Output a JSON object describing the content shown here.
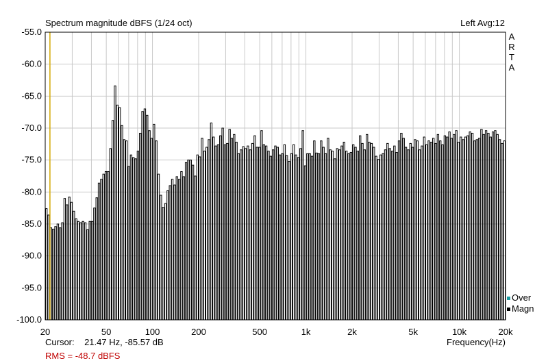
{
  "colors": {
    "background": "#ffffff",
    "trace": "#000000",
    "grid": "#c8c8c8",
    "cursor_line": "#d4a800",
    "rms_text": "#c00000",
    "over_marker": "#1a9aa0",
    "magn_marker": "#000000"
  },
  "header": {
    "title": "Spectrum magnitude dBFS (1/24 oct)",
    "channel_info": "Left  Avg:12"
  },
  "brand": [
    "A",
    "R",
    "T",
    "A"
  ],
  "legend": {
    "over": "Over",
    "magn": "Magn"
  },
  "footer": {
    "cursor_label": "Cursor:",
    "cursor_value": "21.47 Hz, -85.57 dB",
    "xlabel": "Frequency(Hz)",
    "rms": "RMS =  -48.7 dBFS"
  },
  "chart_data": {
    "type": "bar",
    "title": "Spectrum magnitude dBFS (1/24 oct)",
    "xlabel": "Frequency(Hz)",
    "ylabel": "",
    "x_scale": "log",
    "xlim": [
      20,
      20000
    ],
    "ylim": [
      -100,
      -55
    ],
    "grid": true,
    "cursor_x": 21.47,
    "y_ticks": [
      -55.0,
      -60.0,
      -65.0,
      -70.0,
      -75.0,
      -80.0,
      -85.0,
      -90.0,
      -95.0,
      -100.0
    ],
    "y_tick_labels": [
      "-55.0",
      "-60.0",
      "-65.0",
      "-70.0",
      "-75.0",
      "-80.0",
      "-85.0",
      "-90.0",
      "-95.0",
      "-100.0"
    ],
    "x_ticks": [
      20,
      50,
      100,
      200,
      500,
      1000,
      2000,
      5000,
      10000,
      20000
    ],
    "x_tick_labels": [
      "20",
      "50",
      "100",
      "200",
      "500",
      "1k",
      "2k",
      "5k",
      "10k",
      "20k"
    ],
    "bands_per_octave": 24,
    "values": [
      -82.6,
      -83.6,
      -85.6,
      -85.8,
      -85.4,
      -85.0,
      -85.6,
      -84.8,
      -81.0,
      -82.0,
      -80.8,
      -81.6,
      -83.0,
      -84.2,
      -84.6,
      -84.8,
      -84.6,
      -84.8,
      -85.9,
      -84.6,
      -84.6,
      -82.5,
      -80.9,
      -78.6,
      -78.0,
      -77.2,
      -76.8,
      -76.8,
      -73.2,
      -68.8,
      -63.4,
      -66.4,
      -66.8,
      -69.6,
      -71.8,
      -72.0,
      -76.0,
      -74.2,
      -74.6,
      -74.8,
      -73.6,
      -70.8,
      -67.4,
      -67.0,
      -68.0,
      -70.4,
      -71.6,
      -69.4,
      -72.0,
      -77.2,
      -80.5,
      -82.4,
      -81.8,
      -79.8,
      -79.0,
      -78.0,
      -78.9,
      -77.6,
      -78.0,
      -76.8,
      -77.6,
      -75.4,
      -75.0,
      -75.0,
      -75.8,
      -77.5,
      -74.2,
      -74.5,
      -71.6,
      -73.6,
      -73.0,
      -71.8,
      -69.2,
      -71.4,
      -72.8,
      -72.6,
      -71.2,
      -70.0,
      -72.6,
      -72.4,
      -70.2,
      -71.6,
      -71.0,
      -72.2,
      -74.0,
      -73.4,
      -72.9,
      -73.2,
      -72.8,
      -73.4,
      -72.4,
      -71.2,
      -73.0,
      -73.0,
      -70.4,
      -72.6,
      -72.8,
      -73.6,
      -74.4,
      -73.4,
      -72.8,
      -73.0,
      -74.2,
      -74.0,
      -72.6,
      -74.3,
      -75.2,
      -74.0,
      -72.6,
      -74.2,
      -74.6,
      -73.2,
      -70.4,
      -75.9,
      -74.0,
      -74.0,
      -74.4,
      -72.0,
      -73.9,
      -74.0,
      -72.0,
      -73.0,
      -74.0,
      -71.6,
      -73.4,
      -73.6,
      -74.8,
      -73.2,
      -73.4,
      -72.8,
      -72.2,
      -73.6,
      -74.0,
      -73.8,
      -72.6,
      -73.0,
      -73.6,
      -71.2,
      -72.4,
      -73.4,
      -71.0,
      -72.2,
      -72.4,
      -73.0,
      -74.4,
      -74.9,
      -74.2,
      -74.0,
      -73.4,
      -72.4,
      -73.2,
      -73.6,
      -72.8,
      -73.8,
      -72.0,
      -70.8,
      -71.6,
      -73.0,
      -73.4,
      -72.4,
      -73.0,
      -71.8,
      -72.0,
      -73.4,
      -72.8,
      -71.4,
      -72.6,
      -72.0,
      -72.2,
      -71.6,
      -72.4,
      -71.0,
      -72.0,
      -72.6,
      -71.2,
      -71.4,
      -70.6,
      -71.6,
      -71.0,
      -70.4,
      -72.2,
      -71.4,
      -71.8,
      -71.4,
      -71.2,
      -70.6,
      -70.8,
      -72.0,
      -71.8,
      -71.6,
      -70.2,
      -71.0,
      -70.4,
      -70.8,
      -71.4,
      -70.6,
      -70.4,
      -71.0,
      -71.8,
      -72.4,
      -72.0
    ]
  }
}
